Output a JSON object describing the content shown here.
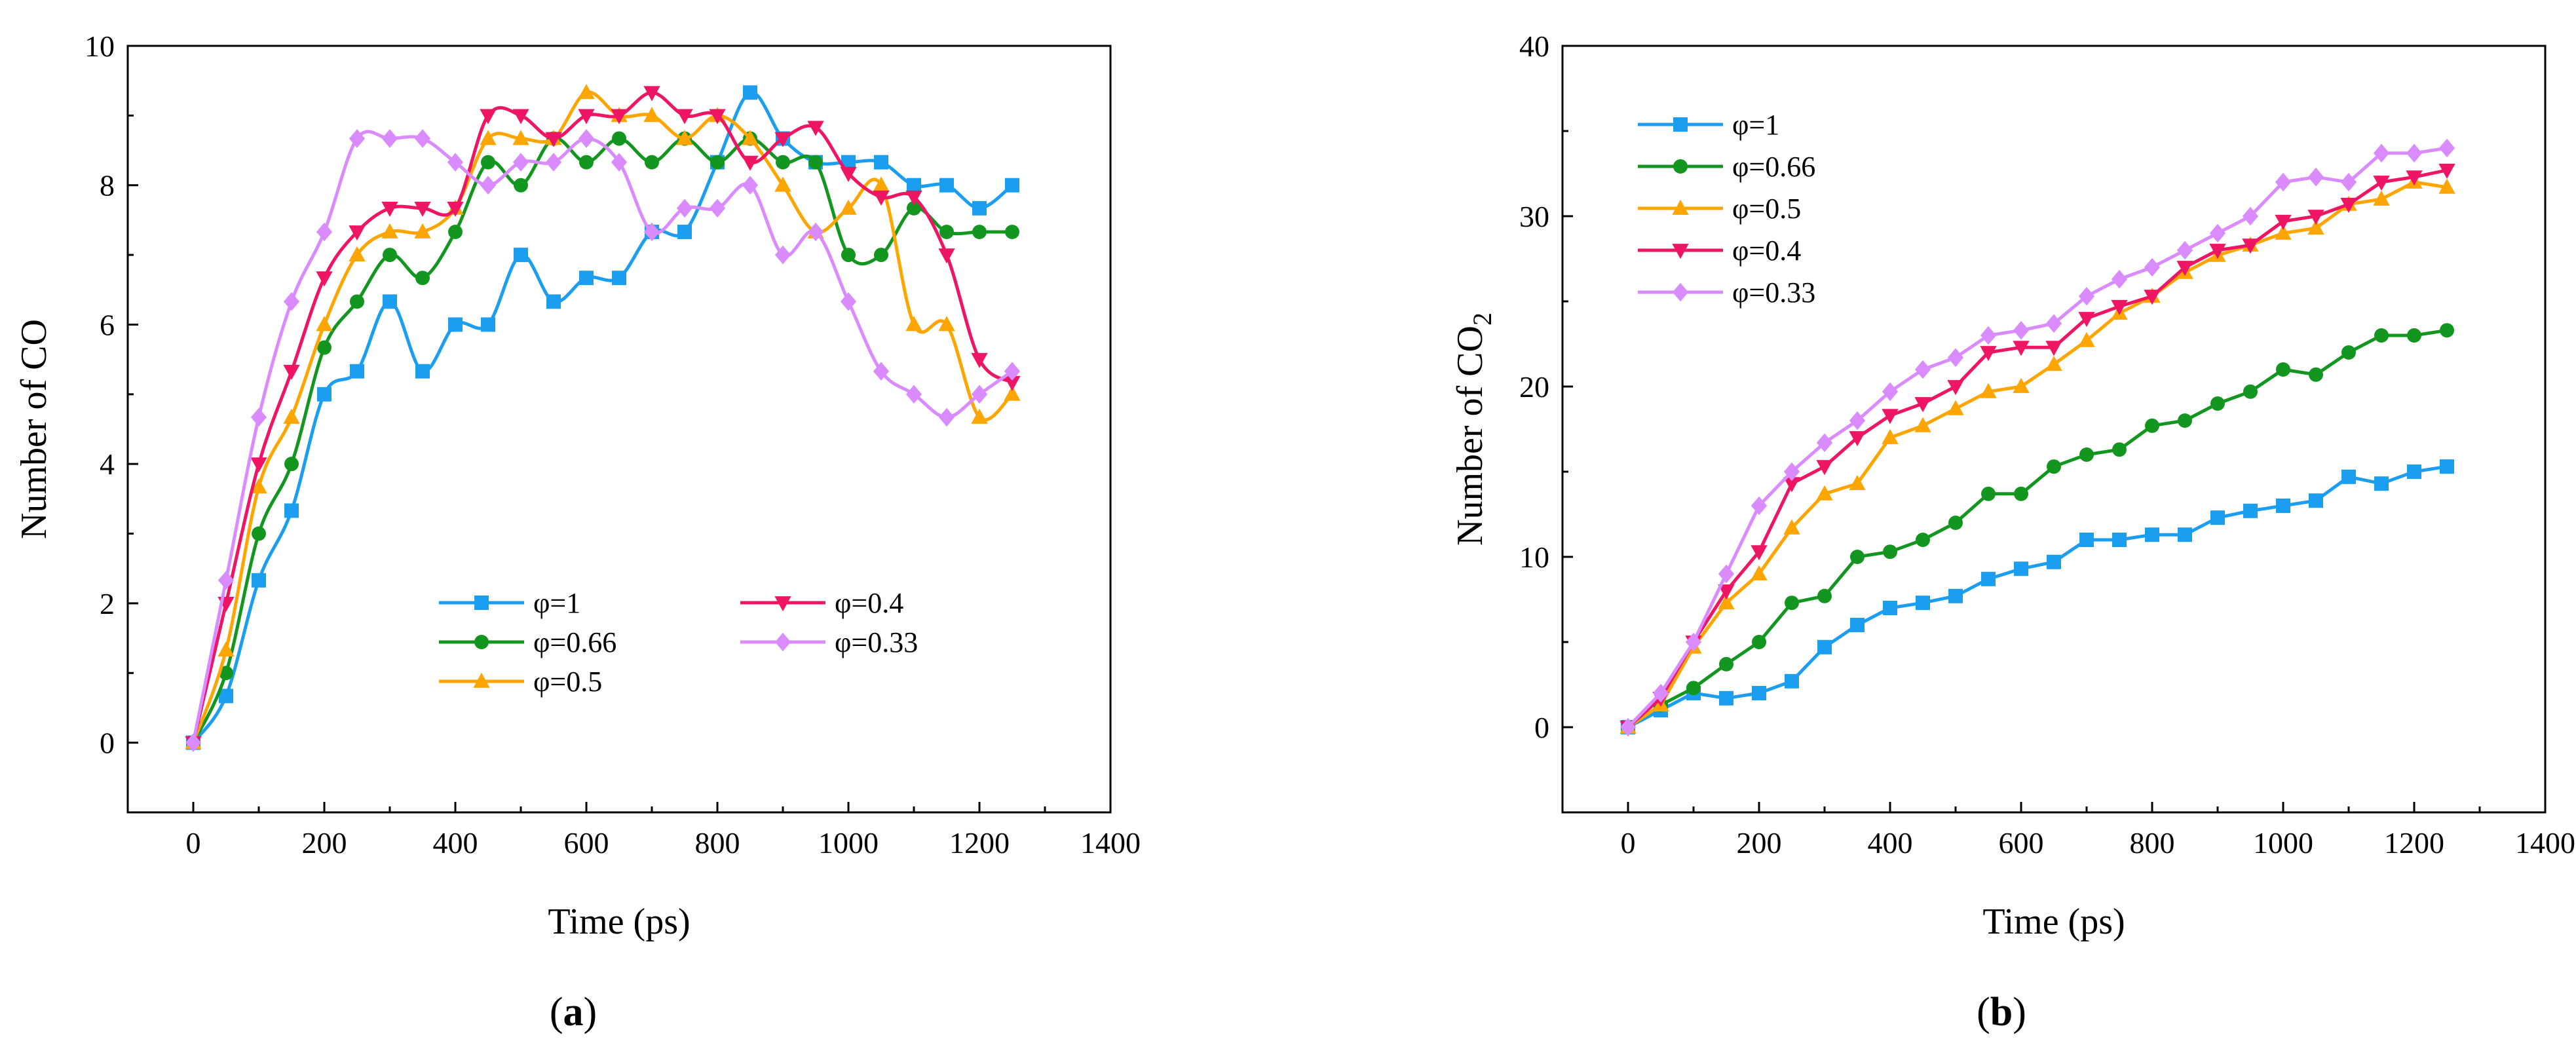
{
  "colors": {
    "phi_1": "#1c9ef0",
    "phi_0_66": "#13961f",
    "phi_0_5": "#ffa500",
    "phi_0_4": "#ee1564",
    "phi_0_33": "#d98bff"
  },
  "panels": {
    "a": {
      "label": "(",
      "letter": "a",
      "close": ")"
    },
    "b": {
      "label": "(",
      "letter": "b",
      "close": ")"
    }
  },
  "chart_data": [
    {
      "id": "a",
      "type": "line",
      "title": "",
      "xlabel": "Time (ps)",
      "ylabel": "Number of CO",
      "xlim": [
        -100,
        1400
      ],
      "ylim": [
        -1,
        10
      ],
      "xticks": [
        0,
        200,
        400,
        600,
        800,
        1000,
        1200,
        1400
      ],
      "yticks": [
        0,
        2,
        4,
        6,
        8,
        10
      ],
      "legend_position": "lower-center",
      "x": [
        0,
        50,
        100,
        150,
        200,
        250,
        300,
        350,
        400,
        450,
        500,
        550,
        600,
        650,
        700,
        750,
        800,
        850,
        900,
        950,
        1000,
        1050,
        1100,
        1150,
        1200,
        1250
      ],
      "series": [
        {
          "name": "φ=1",
          "color_key": "phi_1",
          "marker": "square",
          "values": [
            0,
            0.67,
            2.33,
            3.33,
            5.0,
            5.33,
            6.33,
            5.33,
            6.0,
            6.0,
            7.0,
            6.33,
            6.67,
            6.67,
            7.33,
            7.33,
            8.33,
            9.33,
            8.67,
            8.33,
            8.33,
            8.33,
            8.0,
            8.0,
            7.67,
            8.0
          ]
        },
        {
          "name": "φ=0.66",
          "color_key": "phi_0_66",
          "marker": "circle",
          "values": [
            0,
            1.0,
            3.0,
            4.0,
            5.67,
            6.33,
            7.0,
            6.67,
            7.33,
            8.33,
            8.0,
            8.67,
            8.33,
            8.67,
            8.33,
            8.67,
            8.33,
            8.67,
            8.33,
            8.33,
            7.0,
            7.0,
            7.67,
            7.33,
            7.33,
            7.33
          ]
        },
        {
          "name": "φ=0.5",
          "color_key": "phi_0_5",
          "marker": "triangle-up",
          "values": [
            0,
            1.33,
            3.67,
            4.67,
            6.0,
            7.0,
            7.33,
            7.33,
            7.67,
            8.67,
            8.67,
            8.67,
            9.33,
            9.0,
            9.0,
            8.67,
            9.0,
            8.67,
            8.0,
            7.33,
            7.67,
            8.0,
            6.0,
            6.0,
            4.67,
            5.0
          ]
        },
        {
          "name": "φ=0.4",
          "color_key": "phi_0_4",
          "marker": "triangle-down",
          "values": [
            0,
            2.0,
            4.0,
            5.33,
            6.67,
            7.33,
            7.67,
            7.67,
            7.67,
            9.0,
            9.0,
            8.67,
            9.0,
            9.0,
            9.33,
            9.0,
            9.0,
            8.33,
            8.67,
            8.83,
            8.17,
            7.83,
            7.83,
            7.0,
            5.5,
            5.17
          ]
        },
        {
          "name": "φ=0.33",
          "color_key": "phi_0_33",
          "marker": "diamond",
          "values": [
            0,
            2.33,
            4.67,
            6.33,
            7.33,
            8.67,
            8.67,
            8.67,
            8.33,
            8.0,
            8.33,
            8.33,
            8.67,
            8.33,
            7.33,
            7.67,
            7.67,
            8.0,
            7.0,
            7.33,
            6.33,
            5.33,
            5.0,
            4.67,
            5.0,
            5.33
          ]
        }
      ]
    },
    {
      "id": "b",
      "type": "line",
      "title": "",
      "xlabel": "Time (ps)",
      "ylabel_main": "Number of CO",
      "ylabel_sub": "2",
      "xlim": [
        -100,
        1400
      ],
      "ylim": [
        -5,
        40
      ],
      "xticks": [
        0,
        200,
        400,
        600,
        800,
        1000,
        1200,
        1400
      ],
      "yticks": [
        0,
        10,
        20,
        30,
        40
      ],
      "legend_position": "top-left",
      "x": [
        0,
        50,
        100,
        150,
        200,
        250,
        300,
        350,
        400,
        450,
        500,
        550,
        600,
        650,
        700,
        750,
        800,
        850,
        900,
        950,
        1000,
        1050,
        1100,
        1150,
        1200,
        1250
      ],
      "series": [
        {
          "name": "φ=1",
          "color_key": "phi_1",
          "marker": "square",
          "values": [
            0,
            1.0,
            2.0,
            1.7,
            2.0,
            2.7,
            4.7,
            6.0,
            7.0,
            7.3,
            7.7,
            8.7,
            9.3,
            9.7,
            11.0,
            11.0,
            11.3,
            11.3,
            12.3,
            12.7,
            13.0,
            13.3,
            14.7,
            14.3,
            15.0,
            15.3
          ]
        },
        {
          "name": "φ=0.66",
          "color_key": "phi_0_66",
          "marker": "circle",
          "values": [
            0,
            1.3,
            2.3,
            3.7,
            5.0,
            7.3,
            7.7,
            10.0,
            10.3,
            11.0,
            12.0,
            13.7,
            13.7,
            15.3,
            16.0,
            16.3,
            17.7,
            18.0,
            19.0,
            19.7,
            21.0,
            20.7,
            22.0,
            23.0,
            23.0,
            23.3
          ]
        },
        {
          "name": "φ=0.5",
          "color_key": "phi_0_5",
          "marker": "triangle-up",
          "values": [
            0,
            1.3,
            4.7,
            7.3,
            9.0,
            11.7,
            13.7,
            14.3,
            17.0,
            17.7,
            18.7,
            19.7,
            20.0,
            21.3,
            22.7,
            24.3,
            25.3,
            26.7,
            27.7,
            28.3,
            29.0,
            29.3,
            30.7,
            31.0,
            32.0,
            31.7
          ]
        },
        {
          "name": "φ=0.4",
          "color_key": "phi_0_4",
          "marker": "triangle-down",
          "values": [
            0,
            1.7,
            5.0,
            8.0,
            10.3,
            14.3,
            15.3,
            17.0,
            18.3,
            19.0,
            20.0,
            22.0,
            22.3,
            22.3,
            24.0,
            24.7,
            25.3,
            27.0,
            28.0,
            28.3,
            29.7,
            30.0,
            30.7,
            32.0,
            32.3,
            32.7
          ]
        },
        {
          "name": "φ=0.33",
          "color_key": "phi_0_33",
          "marker": "diamond",
          "values": [
            0,
            2.0,
            5.0,
            9.0,
            13.0,
            15.0,
            16.7,
            18.0,
            19.7,
            21.0,
            21.7,
            23.0,
            23.3,
            23.7,
            25.3,
            26.3,
            27.0,
            28.0,
            29.0,
            30.0,
            32.0,
            32.3,
            32.0,
            33.7,
            33.7,
            34.0
          ]
        }
      ]
    }
  ]
}
